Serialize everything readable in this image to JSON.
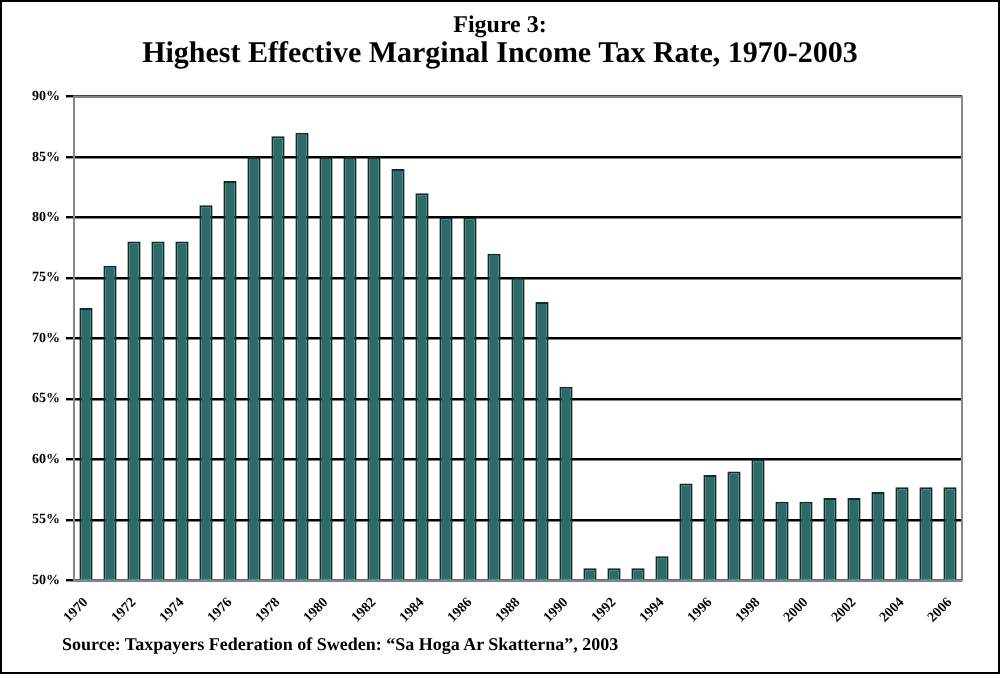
{
  "chart_data": {
    "type": "bar",
    "subtitle": "Figure 3:",
    "title": "Highest Effective Marginal Income Tax Rate, 1970-2003",
    "categories": [
      "1970",
      null,
      "1972",
      null,
      "1974",
      null,
      "1976",
      null,
      "1978",
      null,
      "1980",
      null,
      "1982",
      null,
      "1984",
      null,
      "1986",
      null,
      "1988",
      null,
      "1990",
      null,
      "1992",
      null,
      "1994",
      null,
      "1996",
      null,
      "1998",
      null,
      "2000",
      null,
      "2002",
      null,
      "2004",
      null,
      "2006"
    ],
    "values": [
      72.5,
      76,
      78,
      78,
      78,
      81,
      83,
      85,
      86.7,
      87,
      85,
      85,
      85,
      84,
      82,
      80,
      80,
      77,
      75,
      73,
      66,
      51,
      51,
      51,
      52,
      58,
      58.7,
      59,
      60,
      56.5,
      56.5,
      56.8,
      56.8,
      57.3,
      57.7,
      57.7,
      57.7
    ],
    "color": "#2b6b68",
    "ylim": [
      50,
      90
    ],
    "yticks": [
      {
        "value": 50,
        "label": "50%"
      },
      {
        "value": 55,
        "label": "55%"
      },
      {
        "value": 60,
        "label": "60%"
      },
      {
        "value": 65,
        "label": "65%"
      },
      {
        "value": 70,
        "label": "70%"
      },
      {
        "value": 75,
        "label": "75%"
      },
      {
        "value": 80,
        "label": "80%"
      },
      {
        "value": 85,
        "label": "85%"
      },
      {
        "value": 90,
        "label": "90%"
      }
    ],
    "grid": "y",
    "annotations": [
      "Source:  Taxpayers Federation of Sweden: “Sa Hoga Ar Skatterna”, 2003"
    ]
  }
}
